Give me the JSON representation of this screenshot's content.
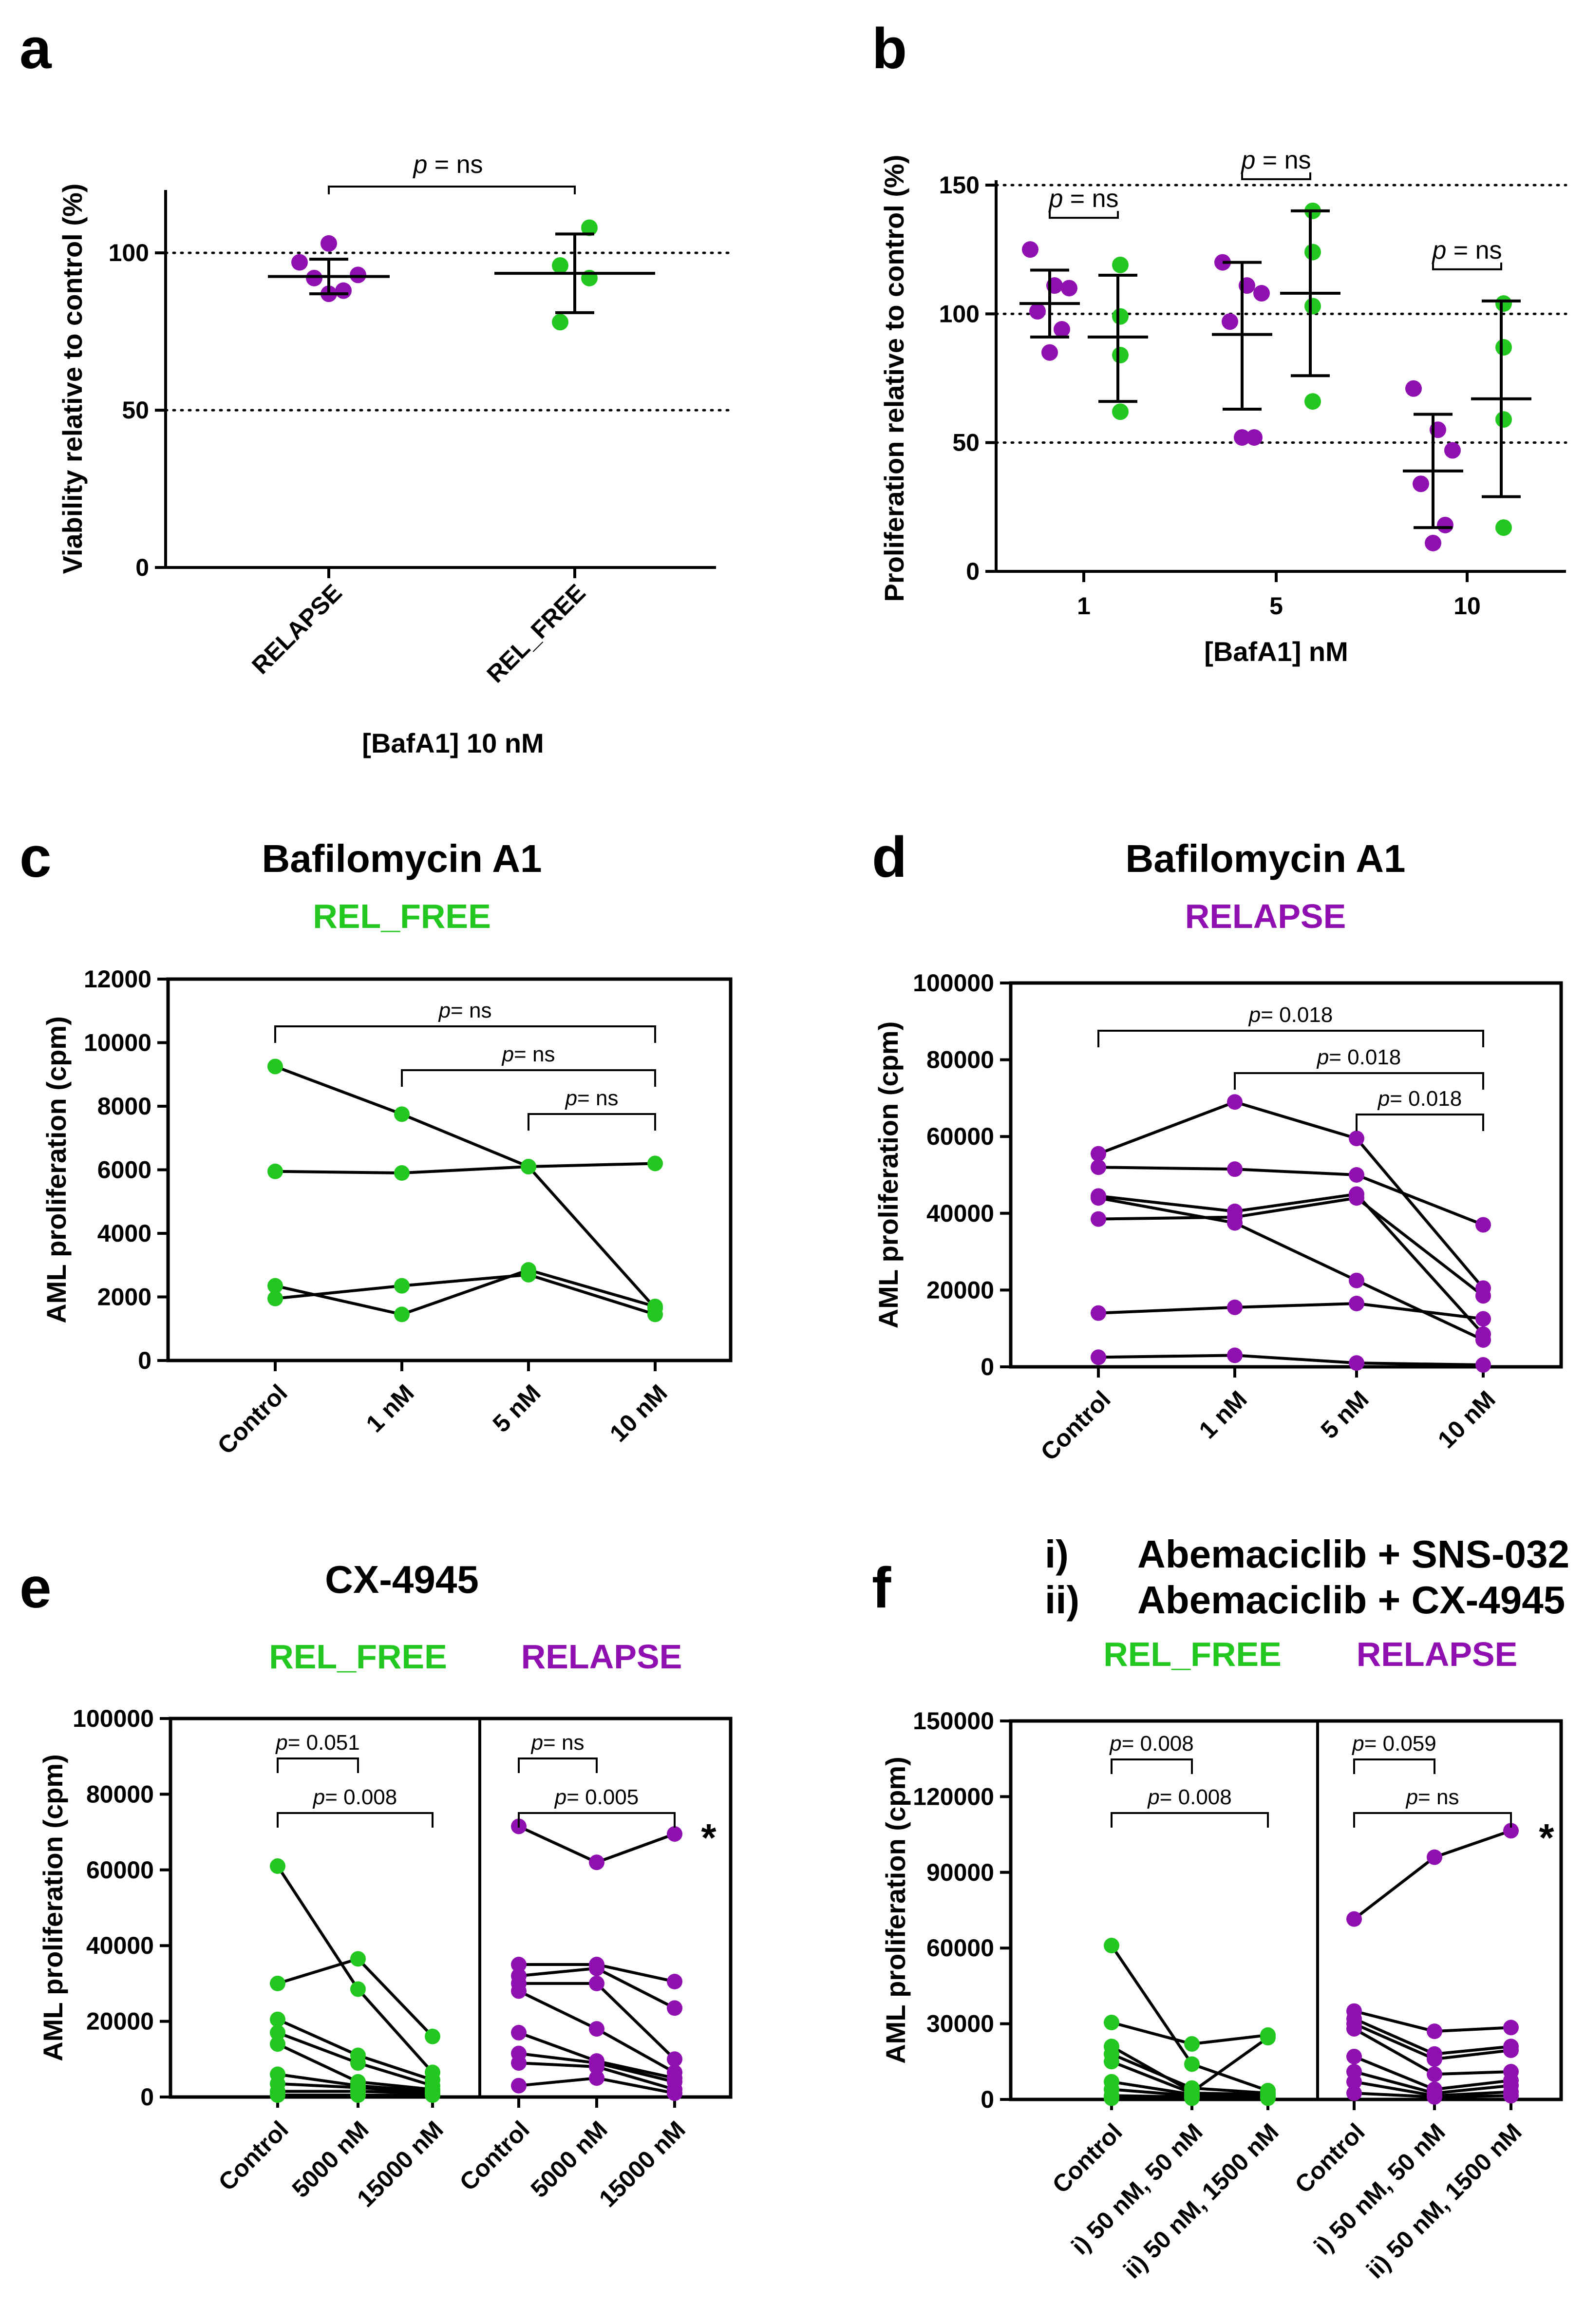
{
  "colors": {
    "relapse": "#8f0fb0",
    "rel_free": "#22c81f",
    "line": "#000000"
  },
  "panels": {
    "a": {
      "letter": "a"
    },
    "b": {
      "letter": "b"
    },
    "c": {
      "letter": "c",
      "title": "Bafilomycin A1",
      "group": "REL_FREE"
    },
    "d": {
      "letter": "d",
      "title": "Bafilomycin A1",
      "group": "RELAPSE"
    },
    "e": {
      "letter": "e",
      "title": "CX-4945",
      "group_left": "REL_FREE",
      "group_right": "RELAPSE",
      "star": "*"
    },
    "f": {
      "letter": "f",
      "title_i_num": "i)",
      "title_i": "Abemaciclib + SNS-032",
      "title_ii_num": "ii)",
      "title_ii": "Abemaciclib + CX-4945",
      "group_left": "REL_FREE",
      "group_right": "RELAPSE",
      "star": "*"
    }
  },
  "chart_data": [
    {
      "id": "a",
      "type": "scatter",
      "ylabel": "Viability relative to control (%)",
      "xlabel": "[BafA1] 10 nM",
      "categories": [
        "RELAPSE",
        "REL_FREE"
      ],
      "ylim": [
        0,
        120
      ],
      "yticks": [
        0,
        50,
        100
      ],
      "reference_lines": [
        50,
        100
      ],
      "series": [
        {
          "name": "RELAPSE",
          "color": "relapse",
          "values": [
            103,
            97,
            93,
            92,
            88,
            87
          ],
          "mean": 92.5,
          "sd_low": 87,
          "sd_high": 98
        },
        {
          "name": "REL_FREE",
          "color": "rel_free",
          "values": [
            108,
            96,
            92,
            78
          ],
          "mean": 93.5,
          "sd_low": 81,
          "sd_high": 106
        }
      ],
      "comparisons": [
        {
          "from": 0,
          "to": 1,
          "p_prefix": "p",
          "p_value": "= ns"
        }
      ]
    },
    {
      "id": "b",
      "type": "scatter",
      "ylabel": "Proliferation relative to control (%)",
      "xlabel": "[BafA1] nM",
      "categories": [
        "1",
        "5",
        "10"
      ],
      "ylim": [
        0,
        150
      ],
      "yticks": [
        0,
        50,
        100,
        150
      ],
      "reference_lines": [
        50,
        100,
        150
      ],
      "groups": [
        {
          "category": "1",
          "relapse": {
            "values": [
              125,
              111,
              110,
              101,
              94,
              85
            ],
            "mean": 104,
            "sd_low": 91,
            "sd_high": 117
          },
          "rel_free": {
            "values": [
              119,
              99,
              84,
              62
            ],
            "mean": 91,
            "sd_low": 66,
            "sd_high": 115
          },
          "comparison": {
            "p_prefix": "p",
            "p_value": "= ns"
          }
        },
        {
          "category": "5",
          "relapse": {
            "values": [
              120,
              111,
              108,
              97,
              52,
              52
            ],
            "mean": 92,
            "sd_low": 63,
            "sd_high": 120
          },
          "rel_free": {
            "values": [
              140,
              124,
              103,
              66
            ],
            "mean": 108,
            "sd_low": 76,
            "sd_high": 140
          },
          "comparison": {
            "p_prefix": "p",
            "p_value": "= ns"
          }
        },
        {
          "category": "10",
          "relapse": {
            "values": [
              71,
              55,
              47,
              34,
              18,
              11
            ],
            "mean": 39,
            "sd_low": 17,
            "sd_high": 61
          },
          "rel_free": {
            "values": [
              104,
              87,
              59,
              17
            ],
            "mean": 67,
            "sd_low": 29,
            "sd_high": 105
          },
          "comparison": {
            "p_prefix": "p",
            "p_value": "= ns"
          }
        }
      ]
    },
    {
      "id": "c",
      "type": "line",
      "ylabel": "AML proliferation (cpm)",
      "categories": [
        "Control",
        "1 nM",
        "5 nM",
        "10 nM"
      ],
      "ylim": [
        0,
        12000
      ],
      "yticks": [
        0,
        2000,
        4000,
        6000,
        8000,
        10000,
        12000
      ],
      "color": "rel_free",
      "series": [
        [
          9250,
          7750,
          6100,
          1650
        ],
        [
          5950,
          5900,
          6100,
          6200
        ],
        [
          2350,
          1450,
          2850,
          1700
        ],
        [
          1950,
          2350,
          2700,
          1450
        ]
      ],
      "comparisons": [
        {
          "from": 0,
          "to": 3,
          "label": "p= ns"
        },
        {
          "from": 1,
          "to": 3,
          "label": "p= ns"
        },
        {
          "from": 2,
          "to": 3,
          "label": "p= ns"
        }
      ]
    },
    {
      "id": "d",
      "type": "line",
      "ylabel": "AML proliferation (cpm)",
      "categories": [
        "Control",
        "1 nM",
        "5 nM",
        "10 nM"
      ],
      "ylim": [
        0,
        100000
      ],
      "yticks": [
        0,
        20000,
        40000,
        60000,
        80000,
        100000
      ],
      "color": "relapse",
      "series": [
        [
          55500,
          69000,
          59500,
          20500
        ],
        [
          52000,
          51500,
          50000,
          37000
        ],
        [
          44500,
          40500,
          45000,
          8500
        ],
        [
          44000,
          37500,
          22500,
          7000
        ],
        [
          38500,
          39000,
          44000,
          18500
        ],
        [
          14000,
          15500,
          16500,
          12500
        ],
        [
          2500,
          3000,
          1000,
          500
        ]
      ],
      "comparisons": [
        {
          "from": 0,
          "to": 3,
          "label": "p= 0.018"
        },
        {
          "from": 1,
          "to": 3,
          "label": "p= 0.018"
        },
        {
          "from": 2,
          "to": 3,
          "label": "p= 0.018"
        }
      ]
    },
    {
      "id": "e",
      "type": "line",
      "ylabel": "AML proliferation (cpm)",
      "ylim": [
        0,
        100000
      ],
      "yticks": [
        0,
        20000,
        40000,
        60000,
        80000,
        100000
      ],
      "subpanels": [
        {
          "group": "REL_FREE",
          "color": "rel_free",
          "categories": [
            "Control",
            "5000 nM",
            "15000 nM"
          ],
          "series": [
            [
              61000,
              28500,
              6500
            ],
            [
              30000,
              36500,
              16000
            ],
            [
              20500,
              11000,
              4500
            ],
            [
              17000,
              9000,
              3000
            ],
            [
              14000,
              4000,
              2000
            ],
            [
              6000,
              3000,
              1500
            ],
            [
              3500,
              2500,
              1000
            ],
            [
              1500,
              1500,
              1000
            ],
            [
              500,
              500,
              500
            ]
          ],
          "comparisons": [
            {
              "from": 0,
              "to": 1,
              "label": "p= 0.051"
            },
            {
              "from": 0,
              "to": 2,
              "label": "p= 0.008"
            }
          ]
        },
        {
          "group": "RELAPSE",
          "color": "relapse",
          "categories": [
            "Control",
            "5000 nM",
            "15000 nM"
          ],
          "series": [
            [
              71500,
              62000,
              69500
            ],
            [
              35000,
              35000,
              30500
            ],
            [
              32000,
              34000,
              23500
            ],
            [
              30000,
              30000,
              10000
            ],
            [
              28000,
              18000,
              6500
            ],
            [
              17000,
              9500,
              5000
            ],
            [
              11500,
              9000,
              4000
            ],
            [
              9000,
              8000,
              2000
            ],
            [
              3000,
              5000,
              1000
            ]
          ],
          "comparisons": [
            {
              "from": 0,
              "to": 1,
              "label": "p= ns"
            },
            {
              "from": 0,
              "to": 2,
              "label": "p= 0.005"
            }
          ]
        }
      ]
    },
    {
      "id": "f",
      "type": "line",
      "ylabel": "AML proliferation (cpm)",
      "ylim": [
        0,
        150000
      ],
      "yticks": [
        0,
        30000,
        60000,
        90000,
        120000,
        150000
      ],
      "subpanels": [
        {
          "group": "REL_FREE",
          "color": "rel_free",
          "categories": [
            "Control",
            "i) 50 nM, 50 nM",
            "ii) 50 nM, 1500 nM"
          ],
          "series": [
            [
              61000,
              14000,
              3500
            ],
            [
              30500,
              22000,
              25500
            ],
            [
              21000,
              3000,
              24500
            ],
            [
              18000,
              4500,
              2500
            ],
            [
              15000,
              2500,
              2000
            ],
            [
              7000,
              2000,
              1500
            ],
            [
              4000,
              1500,
              1500
            ],
            [
              1500,
              1000,
              1000
            ],
            [
              500,
              500,
              500
            ]
          ],
          "comparisons": [
            {
              "from": 0,
              "to": 1,
              "label": "p= 0.008"
            },
            {
              "from": 0,
              "to": 2,
              "label": "p= 0.008"
            }
          ]
        },
        {
          "group": "RELAPSE",
          "color": "relapse",
          "categories": [
            "Control",
            "i) 50 nM, 50 nM",
            "ii) 50 nM, 1500 nM"
          ],
          "series": [
            [
              71500,
              96000,
              106500
            ],
            [
              35000,
              27000,
              28500
            ],
            [
              32000,
              18000,
              21000
            ],
            [
              30000,
              16000,
              19500
            ],
            [
              28000,
              10000,
              11000
            ],
            [
              17000,
              4000,
              7500
            ],
            [
              11000,
              2500,
              5500
            ],
            [
              7000,
              1500,
              3000
            ],
            [
              2500,
              1000,
              1500
            ]
          ],
          "comparisons": [
            {
              "from": 0,
              "to": 1,
              "label": "p= 0.059"
            },
            {
              "from": 0,
              "to": 2,
              "label": "p= ns"
            }
          ]
        }
      ]
    }
  ]
}
